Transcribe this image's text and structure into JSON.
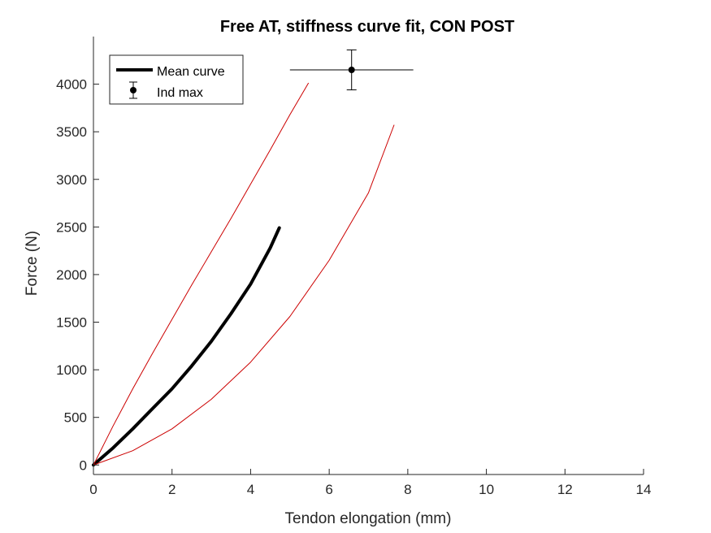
{
  "chart_data": {
    "type": "line",
    "title": "Free AT, stiffness curve fit, CON POST",
    "xlabel": "Tendon elongation (mm)",
    "ylabel": "Force (N)",
    "xlim": [
      0,
      14
    ],
    "ylim": [
      -100,
      4500
    ],
    "xticks": [
      0,
      2,
      4,
      6,
      8,
      10,
      12,
      14
    ],
    "yticks": [
      0,
      500,
      1000,
      1500,
      2000,
      2500,
      3000,
      3500,
      4000
    ],
    "grid": false,
    "legend_position": "top-left",
    "series": [
      {
        "name": "Mean curve",
        "style": "line",
        "color": "#000000",
        "x": [
          0,
          0.5,
          1,
          1.5,
          2,
          2.5,
          3,
          3.5,
          4,
          4.5,
          4.73
        ],
        "y": [
          0,
          180,
          380,
          590,
          800,
          1040,
          1300,
          1590,
          1900,
          2280,
          2490
        ]
      },
      {
        "name": "Ind max",
        "style": "errorbar",
        "color": "#000000",
        "x": [
          6.57
        ],
        "y": [
          4150
        ],
        "x_error": 1.57,
        "y_error": 210
      },
      {
        "style": "line",
        "color": "#cc0000",
        "x": [
          0,
          0.5,
          1,
          1.5,
          2,
          2.5,
          3,
          3.5,
          4,
          4.5,
          5,
          5.47
        ],
        "y": [
          0,
          410,
          800,
          1170,
          1530,
          1890,
          2240,
          2590,
          2950,
          3310,
          3680,
          4010
        ]
      },
      {
        "style": "line",
        "color": "#cc0000",
        "x": [
          0,
          1,
          2,
          3,
          4,
          5,
          6,
          7,
          7.65
        ],
        "y": [
          0,
          150,
          380,
          690,
          1080,
          1560,
          2150,
          2860,
          3570
        ]
      }
    ]
  }
}
